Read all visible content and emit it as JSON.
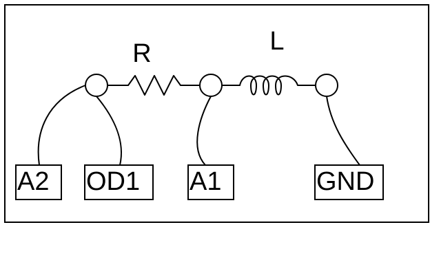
{
  "components": {
    "resistor": {
      "label": "R"
    },
    "inductor": {
      "label": "L"
    }
  },
  "terminals": [
    {
      "label": "A2"
    },
    {
      "label": "OD1"
    },
    {
      "label": "A1"
    },
    {
      "label": "GND"
    }
  ],
  "colors": {
    "line": "#000000",
    "background": "#ffffff"
  }
}
